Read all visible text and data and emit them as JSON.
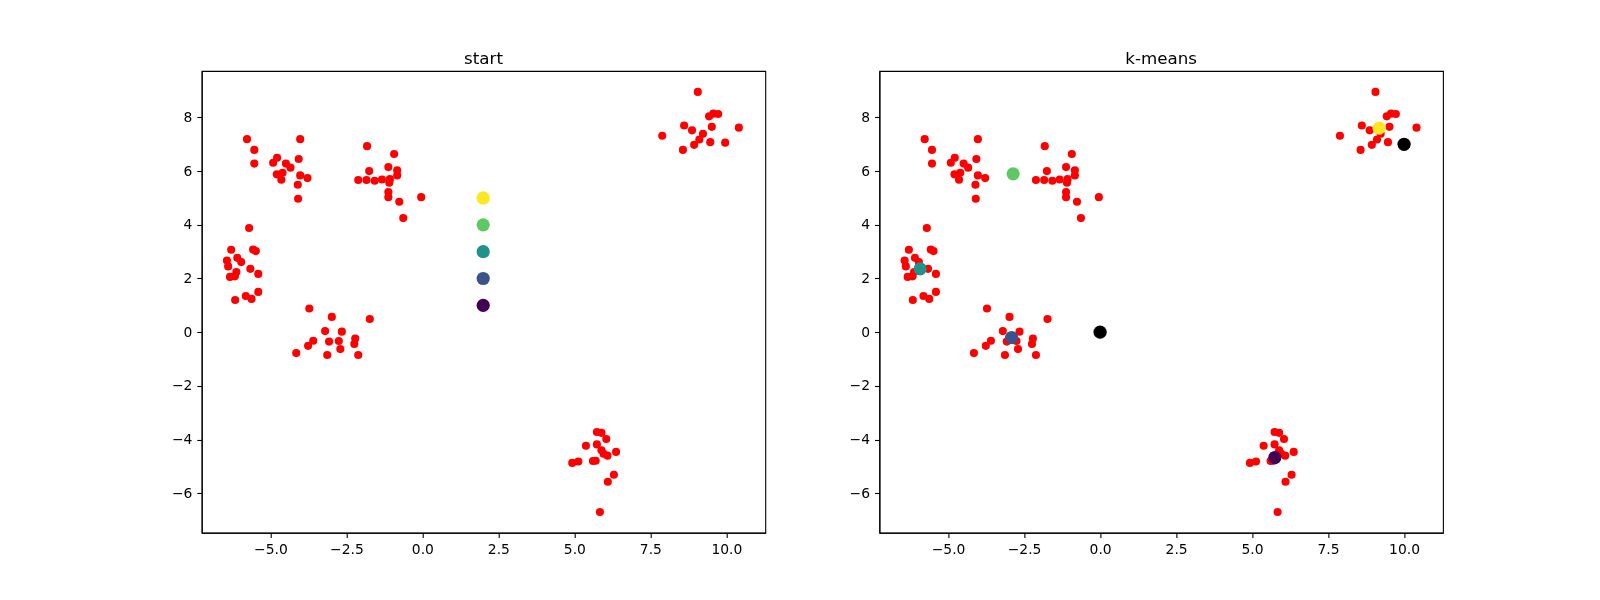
{
  "chart_data": [
    {
      "type": "scatter",
      "title": "start",
      "xlim": [
        -7.26,
        11.28
      ],
      "ylim": [
        -7.47,
        9.73
      ],
      "xticks": [
        {
          "value": -5,
          "label": "−5.0"
        },
        {
          "value": -2.5,
          "label": "−2.5"
        },
        {
          "value": 0,
          "label": "0.0"
        },
        {
          "value": 2.5,
          "label": "2.5"
        },
        {
          "value": 5,
          "label": "5.0"
        },
        {
          "value": 7.5,
          "label": "7.5"
        },
        {
          "value": 10,
          "label": "10.0"
        }
      ],
      "yticks": [
        {
          "value": -6,
          "label": "−6"
        },
        {
          "value": -4,
          "label": "−4"
        },
        {
          "value": -2,
          "label": "−2"
        },
        0,
        2,
        4,
        6,
        8
      ],
      "grid": false,
      "marker": "circle",
      "series": [
        {
          "color": "#ff0000",
          "x": [
            -5.77,
            -5.53,
            -5.53,
            -4.02,
            -4.78,
            -4.91,
            -4.49,
            -4.34,
            -4.07,
            -4.79,
            -4.6,
            -4.64,
            -4.02,
            -3.78,
            -4.1,
            -4.09,
            -1.82,
            -0.93,
            -1.75,
            -1.12,
            -0.83,
            -0.83,
            -2.11,
            -1.84,
            -1.57,
            -1.33,
            -1.07,
            -1.09,
            -1.12,
            -1.12,
            -0.76,
            -0.04,
            -0.63,
            -5.7,
            -6.29,
            -5.57,
            -5.48,
            -6.09,
            -5.96,
            -6.43,
            -6.39,
            -5.66,
            -6.12,
            -5.4,
            -6.33,
            -6.17,
            -5.4,
            -5.81,
            -5.62,
            -6.16,
            -3.72,
            -2.98,
            -1.73,
            -3.2,
            -2.65,
            -3.59,
            -3.76,
            -3.07,
            -2.75,
            -2.21,
            -2.24,
            -2.7,
            -4.15,
            -3.13,
            -2.11,
            9.06,
            9.43,
            9.57,
            9.73,
            10.41,
            8.61,
            8.87,
            9.52,
            9.23,
            9.11,
            7.89,
            8.94,
            9.47,
            9.96,
            8.57,
            5.74,
            5.89,
            6.05,
            5.38,
            5.74,
            5.89,
            6.09,
            5.96,
            6.37,
            4.93,
            5.13,
            5.61,
            5.7,
            6.3,
            6.1,
            5.84
          ],
          "values": [
            7.19,
            6.79,
            6.28,
            7.19,
            6.5,
            6.31,
            6.28,
            6.13,
            6.45,
            5.88,
            5.94,
            5.68,
            5.84,
            5.74,
            5.49,
            4.97,
            6.93,
            6.64,
            6.0,
            6.15,
            6.03,
            5.84,
            5.67,
            5.67,
            5.64,
            5.69,
            5.7,
            5.57,
            5.22,
            5.03,
            4.86,
            5.03,
            4.25,
            3.88,
            3.07,
            3.08,
            3.02,
            2.77,
            2.61,
            2.67,
            2.45,
            2.36,
            2.24,
            2.17,
            2.06,
            2.08,
            1.5,
            1.35,
            1.24,
            1.2,
            0.88,
            0.57,
            0.49,
            0.04,
            0.02,
            -0.32,
            -0.51,
            -0.35,
            -0.33,
            -0.24,
            -0.44,
            -0.63,
            -0.78,
            -0.85,
            -0.85,
            8.95,
            8.04,
            8.14,
            8.13,
            7.62,
            7.7,
            7.52,
            7.65,
            7.39,
            7.18,
            7.32,
            6.98,
            7.08,
            7.06,
            6.79,
            -3.72,
            -3.75,
            -3.98,
            -4.23,
            -4.18,
            -4.4,
            -4.6,
            -4.53,
            -4.46,
            -4.87,
            -4.82,
            -4.8,
            -4.79,
            -5.31,
            -5.57,
            -6.7
          ]
        },
        {
          "colors": [
            "#440154",
            "#3b528b",
            "#21918c",
            "#5ec962",
            "#fde725"
          ],
          "x": [
            2,
            2,
            2,
            2,
            2
          ],
          "values": [
            1,
            2,
            3,
            4,
            5
          ]
        }
      ]
    },
    {
      "type": "scatter",
      "title": "k-means",
      "xlim": [
        -7.26,
        11.28
      ],
      "ylim": [
        -7.47,
        9.73
      ],
      "xticks": [
        {
          "value": -5,
          "label": "−5.0"
        },
        {
          "value": -2.5,
          "label": "−2.5"
        },
        {
          "value": 0,
          "label": "0.0"
        },
        {
          "value": 2.5,
          "label": "2.5"
        },
        {
          "value": 5,
          "label": "5.0"
        },
        {
          "value": 7.5,
          "label": "7.5"
        },
        {
          "value": 10,
          "label": "10.0"
        }
      ],
      "yticks": [
        {
          "value": -6,
          "label": "−6"
        },
        {
          "value": -4,
          "label": "−4"
        },
        {
          "value": -2,
          "label": "−2"
        },
        0,
        2,
        4,
        6,
        8
      ],
      "grid": false,
      "marker": "circle",
      "series": [
        {
          "color": "#ff0000",
          "x": [
            -5.77,
            -5.53,
            -5.53,
            -4.02,
            -4.78,
            -4.91,
            -4.49,
            -4.34,
            -4.07,
            -4.79,
            -4.6,
            -4.64,
            -4.02,
            -3.78,
            -4.1,
            -4.09,
            -1.82,
            -0.93,
            -1.75,
            -1.12,
            -0.83,
            -0.83,
            -2.11,
            -1.84,
            -1.57,
            -1.33,
            -1.07,
            -1.09,
            -1.12,
            -1.12,
            -0.76,
            -0.04,
            -0.63,
            -5.7,
            -6.29,
            -5.57,
            -5.48,
            -6.09,
            -5.96,
            -6.43,
            -6.39,
            -5.66,
            -6.12,
            -5.4,
            -6.33,
            -6.17,
            -5.4,
            -5.81,
            -5.62,
            -6.16,
            -3.72,
            -2.98,
            -1.73,
            -3.2,
            -2.65,
            -3.59,
            -3.76,
            -3.07,
            -2.75,
            -2.21,
            -2.24,
            -2.7,
            -4.15,
            -3.13,
            -2.11,
            9.06,
            9.43,
            9.57,
            9.73,
            10.41,
            8.61,
            8.87,
            9.52,
            9.23,
            9.11,
            7.89,
            8.94,
            9.47,
            null,
            8.57,
            5.74,
            5.89,
            6.05,
            5.38,
            5.74,
            5.89,
            6.09,
            5.96,
            6.37,
            4.93,
            5.13,
            5.61,
            5.7,
            6.3,
            6.1,
            5.84
          ],
          "values": [
            7.19,
            6.79,
            6.28,
            7.19,
            6.5,
            6.31,
            6.28,
            6.13,
            6.45,
            5.88,
            5.94,
            5.68,
            5.84,
            5.74,
            5.49,
            4.97,
            6.93,
            6.64,
            6.0,
            6.15,
            6.03,
            5.84,
            5.67,
            5.67,
            5.64,
            5.69,
            5.7,
            5.57,
            5.22,
            5.03,
            4.86,
            5.03,
            4.25,
            3.88,
            3.07,
            3.08,
            3.02,
            2.77,
            2.61,
            2.67,
            2.45,
            2.36,
            2.24,
            2.17,
            2.06,
            2.08,
            1.5,
            1.35,
            1.24,
            1.2,
            0.88,
            0.57,
            0.49,
            0.04,
            0.02,
            -0.32,
            -0.51,
            -0.35,
            -0.33,
            -0.24,
            -0.44,
            -0.63,
            -0.78,
            -0.85,
            -0.85,
            8.95,
            8.04,
            8.14,
            8.13,
            7.62,
            7.7,
            7.52,
            7.65,
            7.39,
            7.18,
            7.32,
            6.98,
            7.08,
            null,
            6.79,
            -3.72,
            -3.75,
            -3.98,
            -4.23,
            -4.18,
            -4.4,
            -4.6,
            -4.53,
            -4.46,
            -4.87,
            -4.82,
            -4.8,
            -4.79,
            -5.31,
            -5.57,
            -6.7
          ]
        },
        {
          "colors": [
            "#440154",
            "#3b528b",
            "#21918c",
            "#5ec962",
            "#fde725"
          ],
          "x": [
            5.75,
            -2.91,
            -5.92,
            -2.86,
            9.18
          ],
          "values": [
            -4.67,
            -0.2,
            2.36,
            5.9,
            7.6
          ]
        },
        {
          "color": "#000000",
          "x": [
            0,
            10
          ],
          "values": [
            0,
            7
          ]
        }
      ]
    }
  ]
}
